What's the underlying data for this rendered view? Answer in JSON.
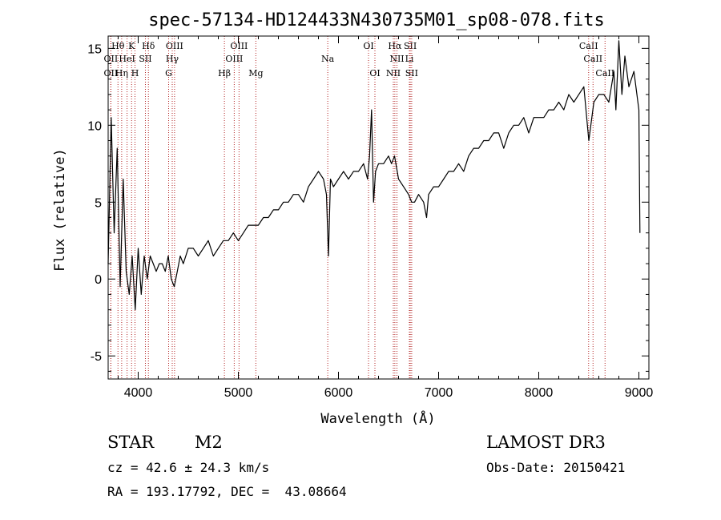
{
  "chart_data": {
    "type": "line",
    "title": "spec-57134-HD124433N430735M01_sp08-078.fits",
    "xlabel": "Wavelength (Å)",
    "ylabel": "Flux (relative)",
    "xlim": [
      3700,
      9100
    ],
    "ylim": [
      -6.5,
      15.8
    ],
    "xticks": [
      4000,
      5000,
      6000,
      7000,
      8000,
      9000
    ],
    "yticks": [
      -5,
      0,
      5,
      10,
      15
    ],
    "grid": false,
    "line_markers": [
      {
        "label": "Hθ",
        "x": 3798,
        "row": 0
      },
      {
        "label": "K",
        "x": 3934,
        "row": 0
      },
      {
        "label": "Hδ",
        "x": 4102,
        "row": 0
      },
      {
        "label": "OIII",
        "x": 4363,
        "row": 0
      },
      {
        "label": "OIII",
        "x": 5007,
        "row": 0
      },
      {
        "label": "OI",
        "x": 6300,
        "row": 0
      },
      {
        "label": "Hα",
        "x": 6563,
        "row": 0
      },
      {
        "label": "SII",
        "x": 6717,
        "row": 0
      },
      {
        "label": "CaII",
        "x": 8498,
        "row": 0
      },
      {
        "label": "OII",
        "x": 3727,
        "row": 1
      },
      {
        "label": "HeI",
        "x": 3889,
        "row": 1
      },
      {
        "label": "SII",
        "x": 4072,
        "row": 1
      },
      {
        "label": "Hγ",
        "x": 4340,
        "row": 1
      },
      {
        "label": "OIII",
        "x": 4959,
        "row": 1
      },
      {
        "label": "Na",
        "x": 5893,
        "row": 1
      },
      {
        "label": "NII",
        "x": 6584,
        "row": 1
      },
      {
        "label": "Li",
        "x": 6708,
        "row": 1
      },
      {
        "label": "CaII",
        "x": 8542,
        "row": 1
      },
      {
        "label": "OII",
        "x": 3727,
        "row": 2
      },
      {
        "label": "Hη",
        "x": 3835,
        "row": 2
      },
      {
        "label": "H",
        "x": 3968,
        "row": 2
      },
      {
        "label": "G",
        "x": 4304,
        "row": 2
      },
      {
        "label": "Hβ",
        "x": 4861,
        "row": 2
      },
      {
        "label": "Mg",
        "x": 5175,
        "row": 2
      },
      {
        "label": "OI",
        "x": 6364,
        "row": 2
      },
      {
        "label": "NII",
        "x": 6548,
        "row": 2
      },
      {
        "label": "SII",
        "x": 6731,
        "row": 2
      },
      {
        "label": "CaII",
        "x": 8662,
        "row": 2
      }
    ],
    "series": [
      {
        "x": [
          3700,
          3730,
          3760,
          3790,
          3820,
          3850,
          3880,
          3910,
          3940,
          3970,
          4000,
          4030,
          4060,
          4090,
          4120,
          4150,
          4180,
          4210,
          4240,
          4270,
          4300,
          4330,
          4360,
          4390,
          4420,
          4450,
          4500,
          4550,
          4600,
          4650,
          4700,
          4750,
          4800,
          4850,
          4900,
          4950,
          5000,
          5050,
          5100,
          5150,
          5200,
          5250,
          5300,
          5350,
          5400,
          5450,
          5500,
          5550,
          5600,
          5650,
          5700,
          5750,
          5800,
          5850,
          5880,
          5900,
          5920,
          5950,
          6000,
          6050,
          6100,
          6150,
          6200,
          6250,
          6290,
          6310,
          6330,
          6350,
          6370,
          6400,
          6450,
          6500,
          6530,
          6560,
          6600,
          6650,
          6700,
          6730,
          6760,
          6800,
          6850,
          6880,
          6900,
          6950,
          7000,
          7050,
          7100,
          7150,
          7200,
          7250,
          7300,
          7350,
          7400,
          7450,
          7500,
          7550,
          7600,
          7650,
          7700,
          7750,
          7800,
          7850,
          7900,
          7950,
          8000,
          8050,
          8100,
          8150,
          8200,
          8250,
          8300,
          8350,
          8400,
          8450,
          8500,
          8550,
          8600,
          8650,
          8700,
          8750,
          8770,
          8800,
          8830,
          8860,
          8900,
          8950,
          9000,
          9010
        ],
        "y": [
          1.0,
          10.5,
          3.0,
          8.5,
          -0.5,
          6.5,
          0.5,
          -1.0,
          1.5,
          -2.0,
          2.0,
          -1.0,
          1.5,
          0.0,
          1.5,
          1.0,
          0.5,
          1.0,
          1.0,
          0.5,
          1.5,
          0.0,
          -0.5,
          0.5,
          1.5,
          1.0,
          2.0,
          2.0,
          1.5,
          2.0,
          2.5,
          1.5,
          2.0,
          2.5,
          2.5,
          3.0,
          2.5,
          3.0,
          3.5,
          3.5,
          3.5,
          4.0,
          4.0,
          4.5,
          4.5,
          5.0,
          5.0,
          5.5,
          5.5,
          5.0,
          6.0,
          6.5,
          7.0,
          6.5,
          5.5,
          1.5,
          6.5,
          6.0,
          6.5,
          7.0,
          6.5,
          7.0,
          7.0,
          7.5,
          6.5,
          8.0,
          11.0,
          5.0,
          7.0,
          7.5,
          7.5,
          8.0,
          7.5,
          8.0,
          6.5,
          6.0,
          5.5,
          5.0,
          5.0,
          5.5,
          5.0,
          4.0,
          5.5,
          6.0,
          6.0,
          6.5,
          7.0,
          7.0,
          7.5,
          7.0,
          8.0,
          8.5,
          8.5,
          9.0,
          9.0,
          9.5,
          9.5,
          8.5,
          9.5,
          10.0,
          10.0,
          10.5,
          9.5,
          10.5,
          10.5,
          10.5,
          11.0,
          11.0,
          11.5,
          11.0,
          12.0,
          11.5,
          12.0,
          12.5,
          9.0,
          11.5,
          12.0,
          12.0,
          11.5,
          13.5,
          11.0,
          15.5,
          12.0,
          14.5,
          12.5,
          13.5,
          11.0,
          3.0
        ]
      }
    ]
  },
  "info": {
    "object_type": "STAR",
    "subclass": "M2",
    "survey": "LAMOST DR3",
    "cz": "cz = 42.6 ± 24.3 km/s",
    "obs_date": "Obs-Date: 20150421",
    "coords": "RA = 193.17792, DEC =  43.08664"
  }
}
